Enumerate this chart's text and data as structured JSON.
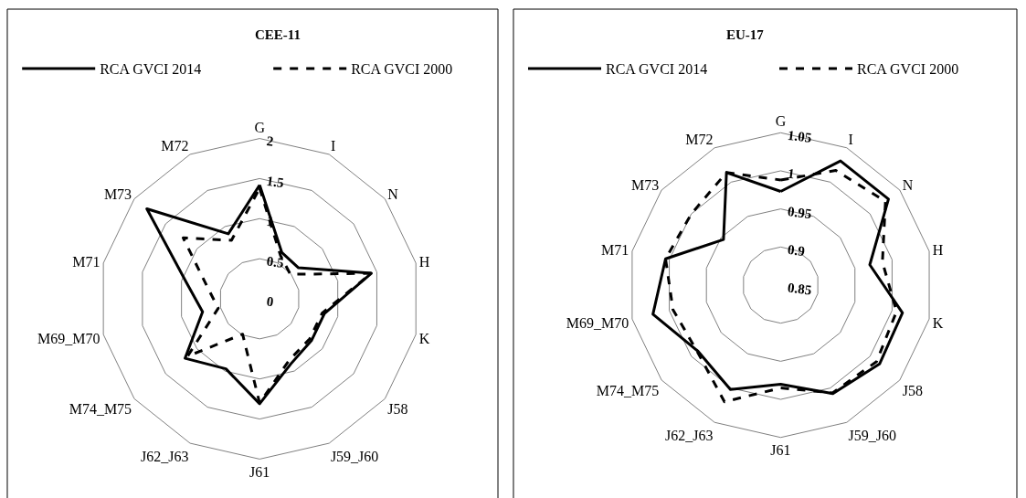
{
  "chart_data": [
    {
      "type": "radar",
      "title": "CEE-11",
      "categories": [
        "G",
        "I",
        "N",
        "H",
        "K",
        "J58",
        "J59_J60",
        "J61",
        "J62_J63",
        "M74_M75",
        "M69_M70",
        "M71",
        "M73",
        "M72"
      ],
      "ylim": [
        0,
        2
      ],
      "yticks": [
        0,
        0.5,
        1,
        1.5,
        2
      ],
      "legend": "top",
      "grid": true,
      "marker": "none",
      "series": [
        {
          "name": "RCA GVCI 2014",
          "color": "#000000",
          "line_style": "solid",
          "values": [
            1.42,
            0.64,
            0.62,
            1.43,
            0.83,
            0.83,
            0.9,
            1.31,
            0.97,
            1.19,
            0.73,
            0.94,
            1.8,
            0.9
          ]
        },
        {
          "name": "RCA GVCI 2000",
          "color": "#000000",
          "line_style": "dashed",
          "values": [
            1.38,
            0.6,
            0.49,
            1.43,
            0.8,
            0.8,
            0.85,
            1.3,
            0.49,
            1.15,
            0.53,
            0.67,
            1.22,
            0.81
          ]
        }
      ]
    },
    {
      "type": "radar",
      "title": "EU-17",
      "categories": [
        "G",
        "I",
        "N",
        "H",
        "K",
        "J58",
        "J59_J60",
        "J61",
        "J62_J63",
        "M74_M75",
        "M69_M70",
        "M71",
        "M73",
        "M72"
      ],
      "ylim": [
        0.85,
        1.05
      ],
      "yticks": [
        0.85,
        0.9,
        0.95,
        1,
        1.05
      ],
      "legend": "top",
      "grid": true,
      "marker": "none",
      "series": [
        {
          "name": "RCA GVCI 2014",
          "color": "#000000",
          "line_style": "solid",
          "values": [
            0.973,
            1.031,
            1.031,
            0.97,
            1.014,
            1.016,
            1.008,
            0.98,
            1.002,
            0.989,
            1.022,
            1.005,
            0.946,
            1.014
          ]
        },
        {
          "name": "RCA GVCI 2000",
          "color": "#000000",
          "line_style": "dashed",
          "values": [
            0.988,
            1.017,
            1.026,
            0.987,
            1.006,
            1.011,
            1.007,
            0.985,
            1.02,
            0.99,
            0.995,
            1.005,
            1.0,
            1.014
          ]
        }
      ]
    }
  ]
}
